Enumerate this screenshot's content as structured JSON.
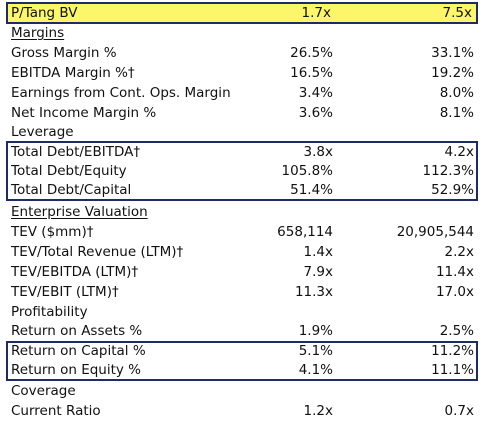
{
  "header": {
    "label": "P/Tang BV",
    "v1": "1.7x",
    "v2": "7.5x"
  },
  "sections": {
    "margins": "Margins",
    "leverage": "Leverage",
    "enterprise": "Enterprise Valuation",
    "profitability": "Profitability",
    "coverage": "Coverage"
  },
  "rows": {
    "gross": {
      "label": "Gross Margin %",
      "v1": "26.5%",
      "v2": "33.1%"
    },
    "ebitda_m": {
      "label": "EBITDA Margin %†",
      "v1": "16.5%",
      "v2": "19.2%"
    },
    "earn": {
      "label": "Earnings from Cont. Ops. Margin",
      "v1": "3.4%",
      "v2": "8.0%"
    },
    "net": {
      "label": "Net Income Margin %",
      "v1": "3.6%",
      "v2": "8.1%"
    },
    "td_ebitda": {
      "label": "Total Debt/EBITDA†",
      "v1": "3.8x",
      "v2": "4.2x"
    },
    "td_equity": {
      "label": "Total Debt/Equity",
      "v1": "105.8%",
      "v2": "112.3%"
    },
    "td_capital": {
      "label": "Total Debt/Capital",
      "v1": "51.4%",
      "v2": "52.9%"
    },
    "tev": {
      "label": "TEV ($mm)†",
      "v1": "658,114",
      "v2": "20,905,544"
    },
    "tev_rev": {
      "label": "TEV/Total Revenue (LTM)†",
      "v1": "1.4x",
      "v2": "2.2x"
    },
    "tev_ebitda": {
      "label": "TEV/EBITDA (LTM)†",
      "v1": "7.9x",
      "v2": "11.4x"
    },
    "tev_ebit": {
      "label": "TEV/EBIT (LTM)†",
      "v1": "11.3x",
      "v2": "17.0x"
    },
    "roa": {
      "label": "Return on Assets %",
      "v1": "1.9%",
      "v2": "2.5%"
    },
    "roc": {
      "label": "Return on Capital %",
      "v1": "5.1%",
      "v2": "11.2%"
    },
    "roe": {
      "label": "Return on Equity %",
      "v1": "4.1%",
      "v2": "11.1%"
    },
    "current": {
      "label": "Current Ratio",
      "v1": "1.2x",
      "v2": "0.7x"
    }
  },
  "colors": {
    "highlight": "#fbf66a",
    "border": "#1d2d63"
  }
}
